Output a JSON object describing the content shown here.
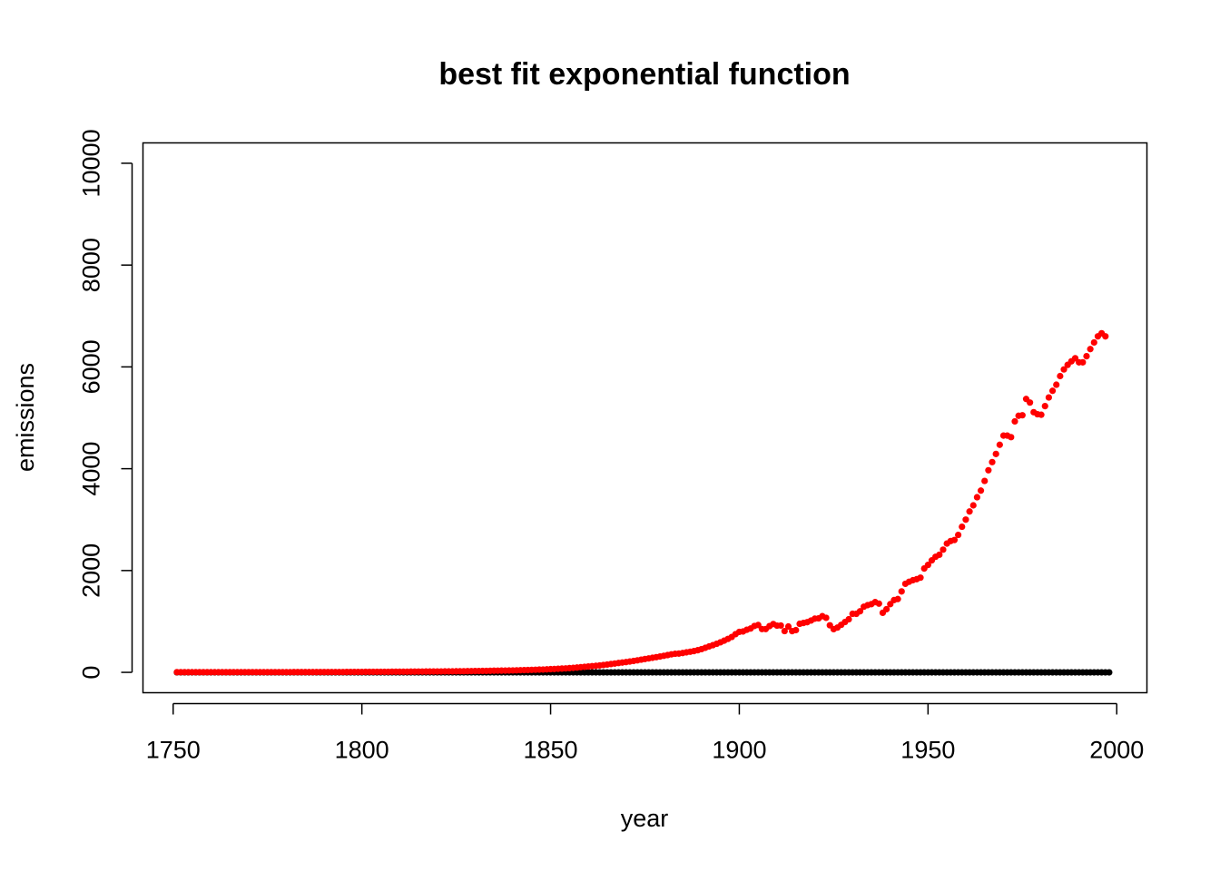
{
  "chart_data": {
    "type": "scatter",
    "title": "best fit exponential function",
    "xlabel": "year",
    "ylabel": "emissions",
    "xlim": [
      1742,
      2008
    ],
    "ylim": [
      -400,
      10400
    ],
    "xticks": [
      1750,
      1800,
      1850,
      1900,
      1950,
      2000
    ],
    "yticks": [
      0,
      2000,
      4000,
      6000,
      8000,
      10000
    ],
    "grid": false,
    "colors": {
      "observed": "#ff0000",
      "fitted": "#000000"
    },
    "series": [
      {
        "color": "#ff0000",
        "x_start": 1751,
        "x_step": 1,
        "values": [
          3,
          3,
          3,
          3,
          3,
          3,
          3,
          3,
          3,
          3,
          3,
          3,
          3,
          3,
          3,
          4,
          4,
          4,
          4,
          4,
          4,
          4,
          4,
          4,
          4,
          4,
          4,
          4,
          4,
          4,
          4,
          5,
          5,
          5,
          5,
          5,
          5,
          6,
          6,
          6,
          7,
          7,
          7,
          7,
          7,
          8,
          8,
          8,
          9,
          9,
          10,
          10,
          10,
          11,
          11,
          11,
          11,
          12,
          12,
          12,
          13,
          13,
          14,
          14,
          15,
          15,
          16,
          16,
          17,
          17,
          18,
          19,
          19,
          20,
          21,
          22,
          22,
          23,
          24,
          26,
          27,
          28,
          29,
          30,
          32,
          33,
          34,
          35,
          36,
          38,
          40,
          42,
          44,
          46,
          49,
          51,
          54,
          56,
          59,
          63,
          66,
          70,
          74,
          78,
          83,
          88,
          94,
          101,
          108,
          115,
          122,
          128,
          136,
          145,
          154,
          163,
          173,
          183,
          193,
          202,
          213,
          224,
          236,
          249,
          262,
          274,
          286,
          298,
          311,
          325,
          339,
          354,
          365,
          369,
          380,
          393,
          405,
          418,
          435,
          457,
          482,
          509,
          534,
          561,
          590,
          623,
          657,
          695,
          751,
          795,
          803,
          837,
          861,
          911,
          930,
          851,
          851,
          908,
          949,
          918,
          920,
          811,
          901,
          810,
          830,
          954,
          970,
          986,
          1018,
          1055,
          1060,
          1104,
          1071,
          924,
          849,
          880,
          933,
          989,
          1043,
          1150,
          1150,
          1200,
          1290,
          1320,
          1340,
          1380,
          1350,
          1170,
          1240,
          1340,
          1420,
          1440,
          1590,
          1740,
          1780,
          1810,
          1830,
          1860,
          2040,
          2110,
          2200,
          2270,
          2310,
          2410,
          2530,
          2580,
          2600,
          2700,
          2860,
          3000,
          3160,
          3280,
          3440,
          3570,
          3760,
          3970,
          4130,
          4290,
          4470,
          4650,
          4650,
          4620,
          4930,
          5040,
          5050,
          5370,
          5300,
          5110,
          5070,
          5060,
          5230,
          5400,
          5530,
          5650,
          5820,
          5950,
          6040,
          6110,
          6170,
          6090,
          6090,
          6210,
          6350,
          6480,
          6600,
          6660,
          6600
        ]
      },
      {
        "color": "#000000",
        "x_start": 1751,
        "x_step": 1,
        "constant_value": 0,
        "count": 248
      }
    ]
  }
}
